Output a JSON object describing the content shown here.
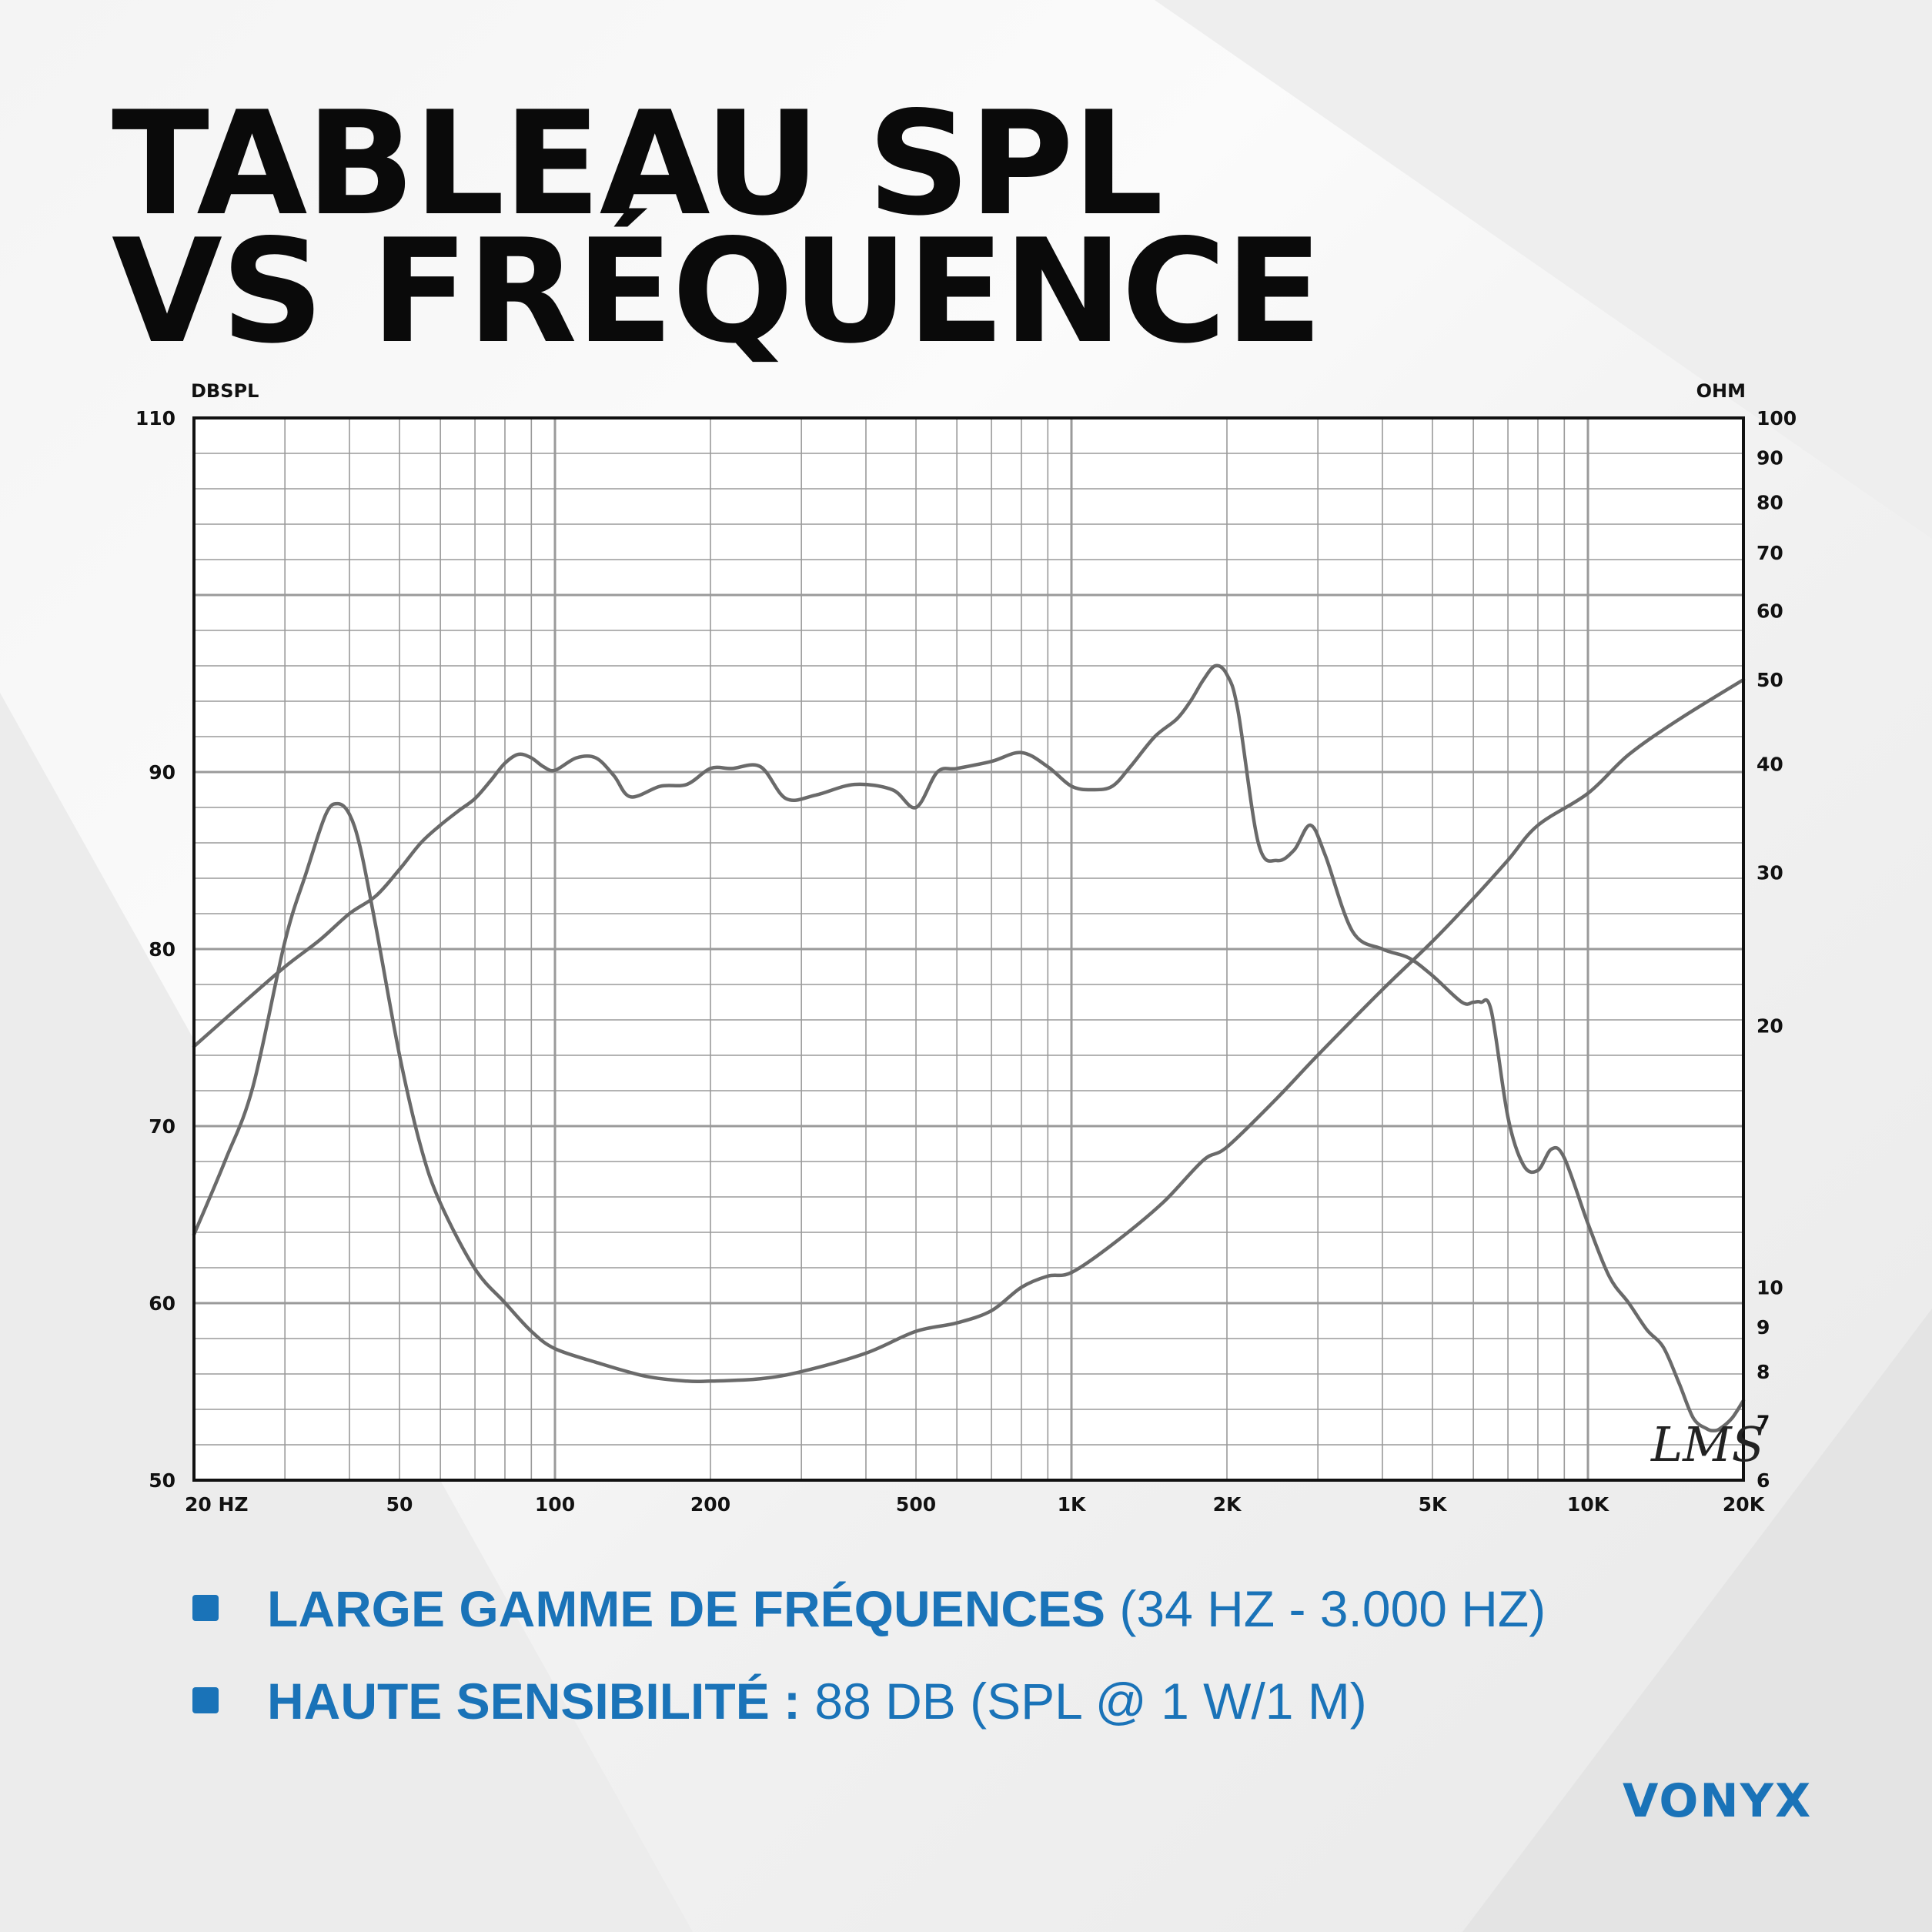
{
  "title": {
    "line1": "TABLEAU SPL",
    "line2": "VS FRÉQUENCE"
  },
  "chart_data": {
    "type": "line",
    "xscale": "log",
    "xlim": [
      20,
      20000
    ],
    "xticks": [
      20,
      50,
      100,
      200,
      500,
      1000,
      2000,
      5000,
      10000,
      20000
    ],
    "xtick_labels": [
      "20 HZ",
      "50",
      "100",
      "200",
      "500",
      "1K",
      "2K",
      "5K",
      "10K",
      "20K"
    ],
    "ylabel_left": "DBSPL",
    "ylim_left": [
      50,
      110
    ],
    "yticks_left": [
      50,
      60,
      70,
      80,
      90,
      110
    ],
    "ylabel_right": "OHM",
    "yscale_right": "log",
    "ylim_right": [
      6,
      100
    ],
    "yticks_right": [
      6,
      7,
      8,
      9,
      10,
      20,
      30,
      40,
      50,
      60,
      70,
      80,
      90,
      100
    ],
    "grid": true,
    "annotation": "LMS",
    "series": [
      {
        "axis": "left",
        "x": [
          20,
          25,
          30,
          35,
          40,
          45,
          50,
          55,
          60,
          65,
          70,
          75,
          80,
          85,
          90,
          95,
          100,
          110,
          120,
          130,
          140,
          160,
          180,
          200,
          220,
          250,
          280,
          320,
          380,
          450,
          500,
          550,
          600,
          700,
          800,
          900,
          1000,
          1100,
          1200,
          1300,
          1450,
          1600,
          1700,
          1800,
          1900,
          2000,
          2100,
          2300,
          2500,
          2700,
          2900,
          3100,
          3500,
          4000,
          4500,
          5000,
          5700,
          6000,
          6200,
          6500,
          7000,
          7500,
          8000,
          8500,
          9000,
          10000,
          11000,
          12000,
          13000,
          14000,
          15000,
          16000,
          17000,
          17500,
          18000,
          19000,
          20000
        ],
        "y": [
          74.5,
          77,
          79,
          80.5,
          82,
          83,
          84.5,
          86,
          87,
          87.8,
          88.5,
          89.5,
          90.5,
          91,
          90.8,
          90.3,
          90.1,
          90.8,
          90.8,
          89.8,
          88.6,
          89.2,
          89.3,
          90.2,
          90.2,
          90.3,
          88.5,
          88.7,
          89.3,
          89,
          88,
          90,
          90.2,
          90.6,
          91.1,
          90.3,
          89.2,
          89,
          89.2,
          90.3,
          92,
          93,
          94,
          95.2,
          96,
          95.5,
          93.5,
          86,
          85,
          85.6,
          87,
          85.3,
          81,
          80,
          79.5,
          78.5,
          77,
          77,
          77,
          76.5,
          70.5,
          67.8,
          67.5,
          68.7,
          68.2,
          64.5,
          61.5,
          60,
          58.5,
          57.5,
          55.5,
          53.5,
          52.9,
          52.8,
          52.9,
          53.5,
          54.5
        ]
      },
      {
        "axis": "right",
        "x": [
          20,
          23,
          26,
          30,
          33,
          36,
          38,
          40,
          42,
          45,
          50,
          55,
          60,
          70,
          80,
          90,
          100,
          120,
          150,
          180,
          200,
          250,
          300,
          400,
          500,
          600,
          700,
          800,
          900,
          1000,
          1200,
          1500,
          1800,
          2000,
          2500,
          3000,
          4000,
          5000,
          6000,
          7000,
          8000,
          10000,
          12000,
          15000,
          20000
        ],
        "y": [
          11.5,
          14,
          17,
          25,
          30,
          35,
          36,
          35,
          32,
          26,
          18.5,
          14.5,
          12.5,
          10.5,
          9.6,
          8.9,
          8.5,
          8.2,
          7.9,
          7.8,
          7.8,
          7.85,
          8,
          8.4,
          8.9,
          9.1,
          9.4,
          10,
          10.3,
          10.4,
          11.2,
          12.5,
          14,
          14.5,
          16.5,
          18.5,
          22,
          25,
          28,
          31,
          34,
          37,
          41,
          45,
          50
        ]
      }
    ]
  },
  "bullets": [
    {
      "bold": "LARGE GAMME DE FRÉQUENCES",
      "light": " (34 HZ - 3.000 HZ)"
    },
    {
      "bold": "HAUTE SENSIBILITÉ :",
      "light": " 88 DB (SPL @ 1 W/1 M)"
    }
  ],
  "logo": {
    "text": "VONYX"
  },
  "colors": {
    "title": "#0a0a0a",
    "accent": "#1a73b8",
    "curve": "#6a6a6a",
    "grid": "#9a9a9a",
    "frame": "#111111"
  }
}
